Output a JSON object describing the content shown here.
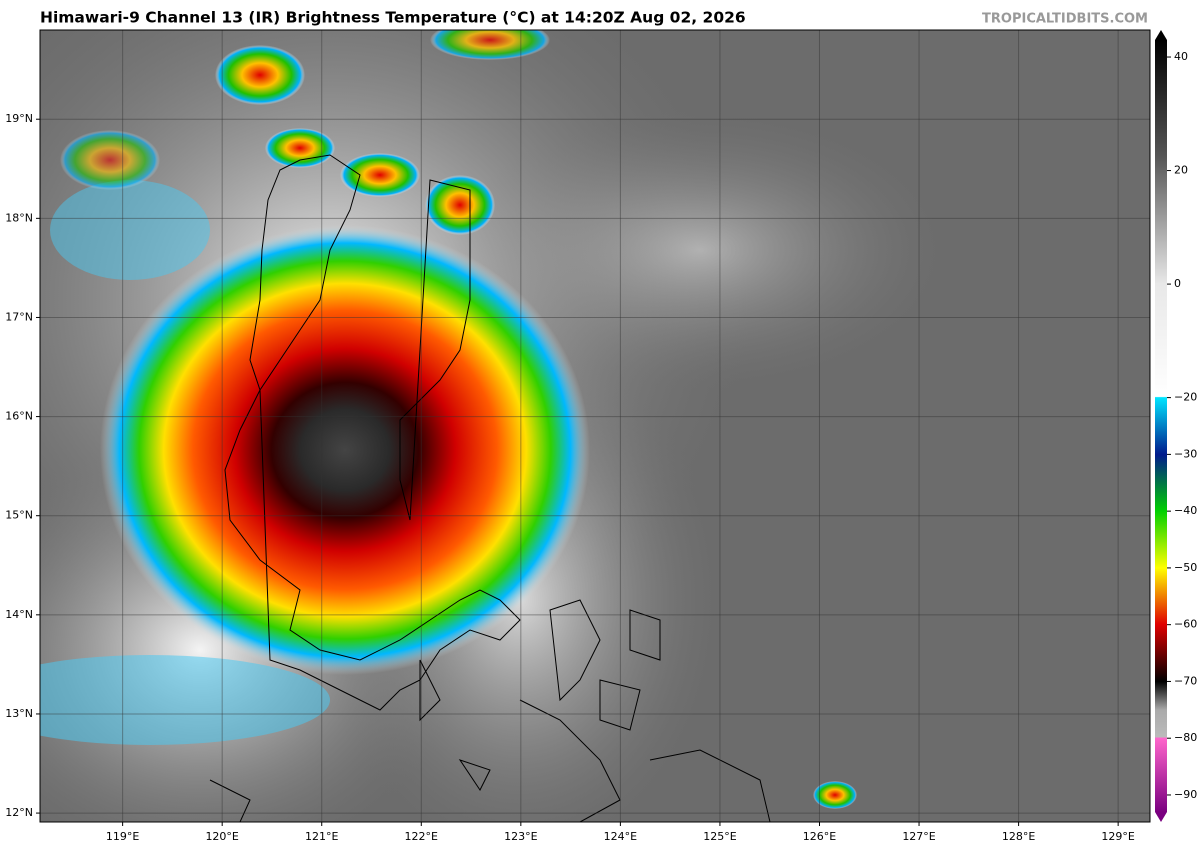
{
  "title": "Himawari-9 Channel 13 (IR) Brightness Temperature (°C) at 14:20Z Aug 02, 2026",
  "watermark": "TROPICALTIDBITS.COM",
  "map": {
    "xlim": [
      118.17,
      129.32
    ],
    "ylim": [
      11.91,
      19.9
    ],
    "xticks": [
      {
        "value": 119,
        "label": "119°E"
      },
      {
        "value": 120,
        "label": "120°E"
      },
      {
        "value": 121,
        "label": "121°E"
      },
      {
        "value": 122,
        "label": "122°E"
      },
      {
        "value": 123,
        "label": "123°E"
      },
      {
        "value": 124,
        "label": "124°E"
      },
      {
        "value": 125,
        "label": "125°E"
      },
      {
        "value": 126,
        "label": "126°E"
      },
      {
        "value": 127,
        "label": "127°E"
      },
      {
        "value": 128,
        "label": "128°E"
      },
      {
        "value": 129,
        "label": "129°E"
      }
    ],
    "yticks": [
      {
        "value": 12,
        "label": "12°N"
      },
      {
        "value": 13,
        "label": "13°N"
      },
      {
        "value": 14,
        "label": "14°N"
      },
      {
        "value": 15,
        "label": "15°N"
      },
      {
        "value": 16,
        "label": "16°N"
      },
      {
        "value": 17,
        "label": "17°N"
      },
      {
        "value": 18,
        "label": "18°N"
      },
      {
        "value": 19,
        "label": "19°N"
      }
    ]
  },
  "colorbar": {
    "lim": [
      43,
      -93
    ],
    "ticks": [
      40,
      20,
      0,
      {
        "value": -20,
        "label": "−20"
      },
      {
        "value": -30,
        "label": "−30"
      },
      {
        "value": -40,
        "label": "−40"
      },
      {
        "value": -50,
        "label": "−50"
      },
      {
        "value": -60,
        "label": "−60"
      },
      {
        "value": -70,
        "label": "−70"
      },
      {
        "value": -80,
        "label": "−80"
      },
      {
        "value": -90,
        "label": "−90"
      }
    ]
  }
}
